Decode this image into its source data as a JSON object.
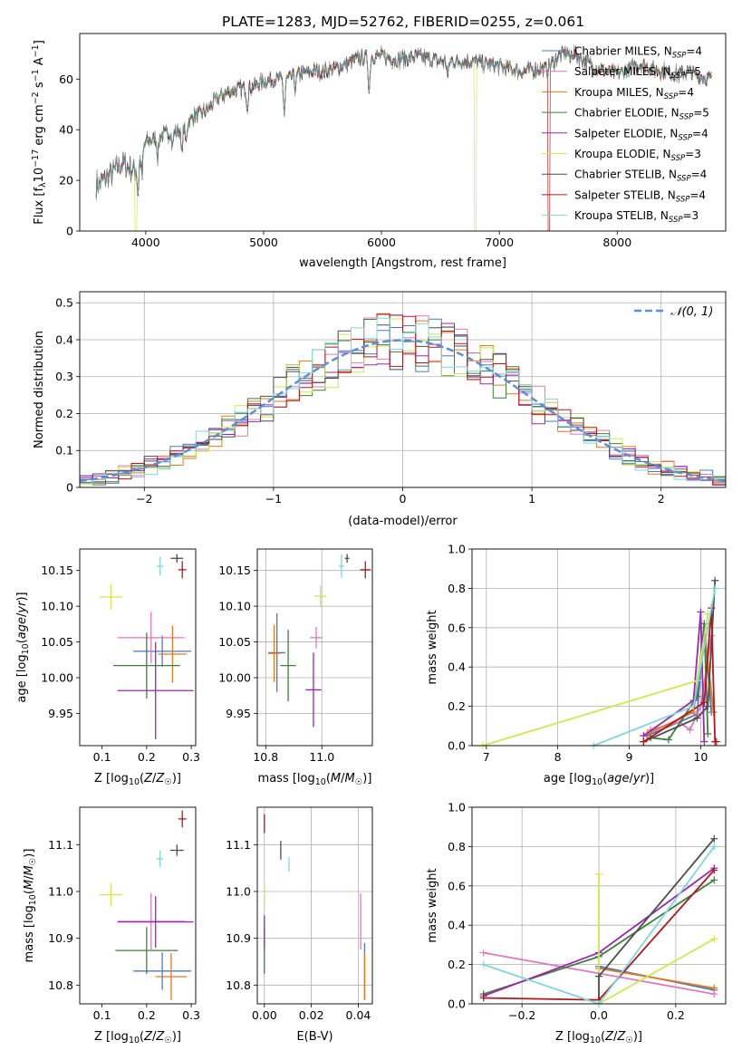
{
  "figure_title": "PLATE=1283, MJD=52762, FIBERID=0255, z=0.061",
  "colors": {
    "chabrier_miles": "#4c78c0",
    "salpeter_miles": "#e377c2",
    "kroupa_miles": "#e07b1f",
    "chabrier_elodie": "#3f7f3f",
    "salpeter_elodie": "#9b27b0",
    "kroupa_elodie": "#cde84f",
    "chabrier_stelib": "#4d4d4d",
    "salpeter_stelib": "#b2181b",
    "kroupa_stelib": "#7fd6dc"
  },
  "chart_data": [
    {
      "id": "spectrum",
      "type": "line",
      "xlabel": "wavelength [Angstrom, rest frame]",
      "ylabel": "Flux [f_λ 10^-17 erg cm^-2 s^-1 A^-1]",
      "ylabel_main": "Flux [f",
      "xlim": [
        3440,
        8920
      ],
      "ylim": [
        0,
        78
      ],
      "xticks": [
        4000,
        5000,
        6000,
        7000,
        8000
      ],
      "yticks": [
        0,
        20,
        40,
        60
      ],
      "legend_position": "top-right",
      "legend": [
        {
          "key": "chabrier_miles",
          "label": "Chabrier MILES, N",
          "n": "=4"
        },
        {
          "key": "salpeter_miles",
          "label": "Salpeter MILES, N",
          "n": "=5"
        },
        {
          "key": "kroupa_miles",
          "label": "Kroupa MILES, N",
          "n": "=4"
        },
        {
          "key": "chabrier_elodie",
          "label": "Chabrier ELODIE, N",
          "n": "=5"
        },
        {
          "key": "salpeter_elodie",
          "label": "Salpeter ELODIE, N",
          "n": "=4"
        },
        {
          "key": "kroupa_elodie",
          "label": "Kroupa ELODIE, N",
          "n": "=3"
        },
        {
          "key": "chabrier_stelib",
          "label": "Chabrier STELIB, N",
          "n": "=4"
        },
        {
          "key": "salpeter_stelib",
          "label": "Salpeter STELIB, N",
          "n": "=4"
        },
        {
          "key": "kroupa_stelib",
          "label": "Kroupa STELIB, N",
          "n": "=3"
        }
      ],
      "n_subscript": "SSP",
      "continuum": [
        [
          3580,
          18
        ],
        [
          3700,
          22
        ],
        [
          3800,
          27
        ],
        [
          3900,
          24
        ],
        [
          3960,
          30
        ],
        [
          4000,
          35
        ],
        [
          4100,
          37
        ],
        [
          4200,
          39
        ],
        [
          4300,
          40
        ],
        [
          4400,
          45
        ],
        [
          4500,
          47
        ],
        [
          4600,
          52
        ],
        [
          4700,
          55
        ],
        [
          4800,
          56
        ],
        [
          4900,
          57
        ],
        [
          5000,
          59
        ],
        [
          5100,
          60
        ],
        [
          5200,
          60
        ],
        [
          5300,
          62
        ],
        [
          5400,
          63
        ],
        [
          5500,
          63
        ],
        [
          5600,
          64
        ],
        [
          5700,
          66
        ],
        [
          5800,
          68
        ],
        [
          5900,
          69
        ],
        [
          6000,
          69
        ],
        [
          6100,
          68
        ],
        [
          6200,
          68
        ],
        [
          6300,
          69
        ],
        [
          6400,
          68
        ],
        [
          6500,
          67
        ],
        [
          6600,
          67
        ],
        [
          6700,
          67
        ],
        [
          6800,
          67
        ],
        [
          6900,
          66
        ],
        [
          7000,
          65
        ],
        [
          7100,
          64
        ],
        [
          7200,
          63
        ],
        [
          7300,
          64
        ],
        [
          7400,
          64
        ],
        [
          7500,
          69
        ],
        [
          7600,
          71
        ],
        [
          7700,
          68
        ],
        [
          7800,
          65
        ],
        [
          7900,
          63
        ],
        [
          8000,
          62
        ],
        [
          8100,
          64
        ],
        [
          8200,
          66
        ],
        [
          8300,
          64
        ],
        [
          8400,
          63
        ],
        [
          8500,
          62
        ],
        [
          8600,
          63
        ],
        [
          8700,
          61
        ],
        [
          8800,
          60
        ]
      ],
      "absorption_lines": [
        [
          3934,
          12
        ],
        [
          3969,
          10
        ],
        [
          4102,
          8
        ],
        [
          4227,
          6
        ],
        [
          4305,
          10
        ],
        [
          4341,
          7
        ],
        [
          4861,
          7
        ],
        [
          5175,
          14
        ],
        [
          5270,
          5
        ],
        [
          5895,
          14
        ],
        [
          6563,
          6
        ],
        [
          7600,
          4
        ]
      ],
      "dropouts": [
        {
          "key": "kroupa_elodie",
          "x": 3915
        },
        {
          "key": "kroupa_elodie",
          "x": 6795
        },
        {
          "key": "salpeter_stelib",
          "x": 7420
        }
      ]
    },
    {
      "id": "residuals",
      "type": "line",
      "xlabel": "(data-model)/error",
      "ylabel": "Normed distribution",
      "xlim": [
        -2.5,
        2.5
      ],
      "ylim": [
        0,
        0.53
      ],
      "xticks": [
        -2,
        -1,
        0,
        1,
        2
      ],
      "yticks": [
        0.0,
        0.1,
        0.2,
        0.3,
        0.4,
        0.5
      ],
      "legend": "𝒩(0, 1)",
      "legend_position": "top-right",
      "grid": true,
      "bin_width": 0.1
    },
    {
      "id": "age_vs_Z",
      "type": "scatter",
      "xlabel": "Z [log",
      "ylabel": "age  [log",
      "xlim": [
        0.05,
        0.31
      ],
      "ylim": [
        9.905,
        10.18
      ],
      "xticks": [
        0.1,
        0.2,
        0.3
      ],
      "yticks": [
        9.95,
        10.0,
        10.05,
        10.1,
        10.15
      ],
      "grid": false,
      "points": [
        {
          "key": "chabrier_miles",
          "x": 0.235,
          "y": 10.037,
          "xerr": 0.065,
          "yerr": 0.022
        },
        {
          "key": "salpeter_miles",
          "x": 0.21,
          "y": 10.056,
          "xerr": 0.075,
          "yerr": 0.036
        },
        {
          "key": "kroupa_miles",
          "x": 0.258,
          "y": 10.033,
          "xerr": 0.032,
          "yerr": 0.04
        },
        {
          "key": "chabrier_elodie",
          "x": 0.2,
          "y": 10.017,
          "xerr": 0.075,
          "yerr": 0.046
        },
        {
          "key": "salpeter_elodie",
          "x": 0.22,
          "y": 9.982,
          "xerr": 0.085,
          "yerr": 0.068
        },
        {
          "key": "kroupa_elodie",
          "x": 0.12,
          "y": 10.113,
          "xerr": 0.025,
          "yerr": 0.018
        },
        {
          "key": "chabrier_stelib",
          "x": 0.268,
          "y": 10.167,
          "xerr": 0.014,
          "yerr": 0.006
        },
        {
          "key": "salpeter_stelib",
          "x": 0.28,
          "y": 10.151,
          "xerr": 0.009,
          "yerr": 0.012
        },
        {
          "key": "kroupa_stelib",
          "x": 0.23,
          "y": 10.156,
          "xerr": 0.008,
          "yerr": 0.013
        }
      ]
    },
    {
      "id": "age_vs_mass",
      "type": "scatter",
      "xlabel": "mass [log",
      "xlim": [
        10.77,
        11.18
      ],
      "ylim": [
        9.905,
        10.18
      ],
      "xticks": [
        10.8,
        11.0
      ],
      "yticks": [
        9.95,
        10.0,
        10.05,
        10.1,
        10.15
      ],
      "grid": true,
      "points": [
        {
          "key": "chabrier_miles",
          "x": 10.84,
          "y": 10.035,
          "xerr": 0.03,
          "yerr": 0.055
        },
        {
          "key": "salpeter_miles",
          "x": 10.98,
          "y": 10.056,
          "xerr": 0.022,
          "yerr": 0.015
        },
        {
          "key": "kroupa_miles",
          "x": 10.83,
          "y": 10.034,
          "xerr": 0.022,
          "yerr": 0.04
        },
        {
          "key": "chabrier_elodie",
          "x": 10.88,
          "y": 10.017,
          "xerr": 0.028,
          "yerr": 0.05
        },
        {
          "key": "salpeter_elodie",
          "x": 10.97,
          "y": 9.983,
          "xerr": 0.028,
          "yerr": 0.052
        },
        {
          "key": "kroupa_elodie",
          "x": 10.995,
          "y": 10.114,
          "xerr": 0.022,
          "yerr": 0.015
        },
        {
          "key": "chabrier_stelib",
          "x": 11.09,
          "y": 10.167,
          "xerr": 0.008,
          "yerr": 0.006
        },
        {
          "key": "salpeter_stelib",
          "x": 11.155,
          "y": 10.151,
          "xerr": 0.018,
          "yerr": 0.012
        },
        {
          "key": "kroupa_stelib",
          "x": 11.07,
          "y": 10.156,
          "xerr": 0.01,
          "yerr": 0.016
        }
      ]
    },
    {
      "id": "weight_vs_age",
      "type": "line",
      "xlabel": "age  [log",
      "ylabel": "mass weight",
      "xlim": [
        6.8,
        10.35
      ],
      "ylim": [
        0,
        1.0
      ],
      "xticks": [
        7,
        8,
        9,
        10
      ],
      "yticks": [
        0.0,
        0.2,
        0.4,
        0.6,
        0.8,
        1.0
      ],
      "grid": true,
      "series": [
        {
          "key": "chabrier_miles",
          "x": [
            9.25,
            9.95,
            10.05,
            10.15
          ],
          "y": [
            0.05,
            0.16,
            0.62,
            0.17
          ]
        },
        {
          "key": "salpeter_miles",
          "x": [
            9.3,
            9.7,
            9.85,
            10.0,
            10.15
          ],
          "y": [
            0.08,
            0.12,
            0.08,
            0.2,
            0.56
          ]
        },
        {
          "key": "kroupa_miles",
          "x": [
            9.25,
            9.9,
            10.05,
            10.18
          ],
          "y": [
            0.06,
            0.17,
            0.6,
            0.17
          ]
        },
        {
          "key": "chabrier_elodie",
          "x": [
            9.3,
            9.55,
            9.95,
            10.05,
            10.1
          ],
          "y": [
            0.04,
            0.03,
            0.25,
            0.62,
            0.06
          ]
        },
        {
          "key": "salpeter_elodie",
          "x": [
            9.2,
            9.9,
            10.0,
            10.05
          ],
          "y": [
            0.05,
            0.23,
            0.68,
            0.02
          ]
        },
        {
          "key": "kroupa_elodie",
          "x": [
            6.95,
            9.95,
            10.1
          ],
          "y": [
            0.0,
            0.33,
            0.67
          ]
        },
        {
          "key": "chabrier_stelib",
          "x": [
            9.2,
            9.95,
            10.1,
            10.2
          ],
          "y": [
            0.02,
            0.14,
            0.2,
            0.84
          ]
        },
        {
          "key": "salpeter_stelib",
          "x": [
            9.2,
            10.05,
            10.15,
            10.2,
            10.22
          ],
          "y": [
            0.02,
            0.22,
            0.7,
            0.02,
            0.02
          ]
        },
        {
          "key": "kroupa_stelib",
          "x": [
            8.5,
            9.9,
            10.2
          ],
          "y": [
            0.0,
            0.2,
            0.8
          ]
        }
      ]
    },
    {
      "id": "mass_vs_Z",
      "type": "scatter",
      "xlabel": "Z [log",
      "ylabel": "mass [log",
      "xlim": [
        0.05,
        0.31
      ],
      "ylim": [
        10.76,
        11.18
      ],
      "xticks": [
        0.1,
        0.2,
        0.3
      ],
      "yticks": [
        10.8,
        10.9,
        11.0,
        11.1
      ],
      "grid": false,
      "points": [
        {
          "key": "chabrier_miles",
          "x": 0.235,
          "y": 10.83,
          "xerr": 0.065,
          "yerr": 0.04
        },
        {
          "key": "salpeter_miles",
          "x": 0.21,
          "y": 10.936,
          "xerr": 0.075,
          "yerr": 0.06
        },
        {
          "key": "kroupa_miles",
          "x": 0.255,
          "y": 10.818,
          "xerr": 0.035,
          "yerr": 0.05
        },
        {
          "key": "chabrier_elodie",
          "x": 0.2,
          "y": 10.874,
          "xerr": 0.07,
          "yerr": 0.05
        },
        {
          "key": "salpeter_elodie",
          "x": 0.22,
          "y": 10.935,
          "xerr": 0.085,
          "yerr": 0.055
        },
        {
          "key": "kroupa_elodie",
          "x": 0.12,
          "y": 10.993,
          "xerr": 0.025,
          "yerr": 0.025
        },
        {
          "key": "chabrier_stelib",
          "x": 0.268,
          "y": 11.088,
          "xerr": 0.015,
          "yerr": 0.012
        },
        {
          "key": "salpeter_stelib",
          "x": 0.28,
          "y": 11.155,
          "xerr": 0.009,
          "yerr": 0.018
        },
        {
          "key": "kroupa_stelib",
          "x": 0.23,
          "y": 11.07,
          "xerr": 0.008,
          "yerr": 0.018
        }
      ]
    },
    {
      "id": "mass_vs_ebv",
      "type": "scatter",
      "xlabel": "E(B-V)",
      "xlim": [
        -0.003,
        0.046
      ],
      "ylim": [
        10.76,
        11.18
      ],
      "xticks": [
        0.0,
        0.02,
        0.04
      ],
      "yticks": [
        10.8,
        10.9,
        11.0,
        11.1
      ],
      "grid": true,
      "points": [
        {
          "key": "chabrier_miles",
          "x": 0.0427,
          "y": 10.83,
          "xerr": 0.0,
          "yerr": 0.06
        },
        {
          "key": "salpeter_miles",
          "x": 0.041,
          "y": 10.936,
          "xerr": 0.0,
          "yerr": 0.06
        },
        {
          "key": "kroupa_miles",
          "x": 0.0427,
          "y": 10.818,
          "xerr": 0.0,
          "yerr": 0.05
        },
        {
          "key": "chabrier_elodie",
          "x": 0.0,
          "y": 10.874,
          "xerr": 0.0,
          "yerr": 0.05
        },
        {
          "key": "salpeter_elodie",
          "x": 0.0,
          "y": 10.914,
          "xerr": 0.0,
          "yerr": 0.035
        },
        {
          "key": "kroupa_elodie",
          "x": 0.0,
          "y": 10.993,
          "xerr": 0.0,
          "yerr": 0.025
        },
        {
          "key": "chabrier_stelib",
          "x": 0.007,
          "y": 11.088,
          "xerr": 0.0,
          "yerr": 0.02
        },
        {
          "key": "salpeter_stelib",
          "x": 0.0,
          "y": 11.145,
          "xerr": 0.0,
          "yerr": 0.02
        },
        {
          "key": "kroupa_stelib",
          "x": 0.0105,
          "y": 11.058,
          "xerr": 0.0,
          "yerr": 0.016
        }
      ]
    },
    {
      "id": "weight_vs_Z",
      "type": "line",
      "xlabel": "Z [log",
      "ylabel": "mass weight",
      "xlim": [
        -0.33,
        0.33
      ],
      "ylim": [
        0,
        1.0
      ],
      "xticks": [
        -0.2,
        0.0,
        0.2
      ],
      "yticks": [
        0.0,
        0.2,
        0.4,
        0.6,
        0.8,
        1.0
      ],
      "grid": true,
      "series": [
        {
          "key": "chabrier_miles",
          "x": [
            0.0,
            0.3
          ],
          "y": [
            0.19,
            0.07
          ]
        },
        {
          "key": "salpeter_miles",
          "x": [
            -0.3,
            0.3
          ],
          "y": [
            0.26,
            0.05
          ]
        },
        {
          "key": "kroupa_miles",
          "x": [
            0.0,
            0.3
          ],
          "y": [
            0.18,
            0.08
          ]
        },
        {
          "key": "chabrier_elodie",
          "x": [
            -0.3,
            0.0,
            0.3
          ],
          "y": [
            0.05,
            0.24,
            0.63
          ]
        },
        {
          "key": "salpeter_elodie",
          "x": [
            -0.3,
            0.0,
            0.3
          ],
          "y": [
            0.04,
            0.26,
            0.69
          ]
        },
        {
          "key": "kroupa_elodie",
          "x": [
            0.0,
            0.0,
            0.3
          ],
          "y": [
            0.66,
            0.0,
            0.33
          ]
        },
        {
          "key": "chabrier_stelib",
          "x": [
            0.0,
            0.0,
            0.3
          ],
          "y": [
            0.02,
            0.14,
            0.84
          ]
        },
        {
          "key": "salpeter_stelib",
          "x": [
            -0.3,
            0.0,
            0.3
          ],
          "y": [
            0.03,
            0.02,
            0.68
          ]
        },
        {
          "key": "kroupa_stelib",
          "x": [
            -0.3,
            0.0,
            0.3
          ],
          "y": [
            0.2,
            0.0,
            0.8
          ]
        }
      ]
    }
  ]
}
